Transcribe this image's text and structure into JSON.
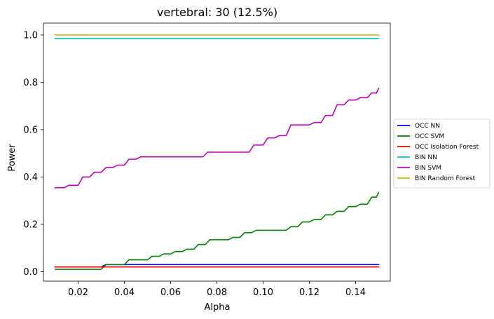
{
  "chart_data": {
    "type": "line",
    "title": "vertebral: 30 (12.5%)",
    "xlabel": "Alpha",
    "ylabel": "Power",
    "xlim": [
      0.005,
      0.155
    ],
    "ylim": [
      -0.04,
      1.05
    ],
    "xticks": [
      0.02,
      0.04,
      0.06,
      0.08,
      0.1,
      0.12,
      0.14
    ],
    "xtick_labels": [
      "0.02",
      "0.04",
      "0.06",
      "0.08",
      "0.10",
      "0.12",
      "0.14"
    ],
    "yticks": [
      0.0,
      0.2,
      0.4,
      0.6,
      0.8,
      1.0
    ],
    "ytick_labels": [
      "0.0",
      "0.2",
      "0.4",
      "0.6",
      "0.8",
      "1.0"
    ],
    "grid": false,
    "legend_position": "right, outside plot",
    "series": [
      {
        "name": "OCC NN",
        "color": "#0000ff",
        "x": [
          0.01,
          0.03,
          0.032,
          0.15
        ],
        "y": [
          0.02,
          0.02,
          0.03,
          0.03
        ]
      },
      {
        "name": "OCC SVM",
        "color": "#008000",
        "x": [
          0.01,
          0.03,
          0.032,
          0.04,
          0.042,
          0.05,
          0.052,
          0.055,
          0.057,
          0.06,
          0.062,
          0.065,
          0.067,
          0.07,
          0.072,
          0.075,
          0.077,
          0.085,
          0.087,
          0.09,
          0.092,
          0.095,
          0.097,
          0.11,
          0.112,
          0.115,
          0.117,
          0.12,
          0.122,
          0.125,
          0.127,
          0.13,
          0.132,
          0.135,
          0.137,
          0.14,
          0.142,
          0.145,
          0.147,
          0.149,
          0.15
        ],
        "y": [
          0.01,
          0.01,
          0.03,
          0.03,
          0.05,
          0.05,
          0.065,
          0.065,
          0.075,
          0.075,
          0.085,
          0.085,
          0.095,
          0.095,
          0.115,
          0.115,
          0.135,
          0.135,
          0.145,
          0.145,
          0.165,
          0.165,
          0.175,
          0.175,
          0.19,
          0.19,
          0.21,
          0.21,
          0.22,
          0.22,
          0.24,
          0.24,
          0.255,
          0.255,
          0.275,
          0.275,
          0.285,
          0.285,
          0.315,
          0.315,
          0.335
        ]
      },
      {
        "name": "OCC Isolation Forest",
        "color": "#ff0000",
        "x": [
          0.01,
          0.15
        ],
        "y": [
          0.02,
          0.02
        ]
      },
      {
        "name": "BIN NN",
        "color": "#00bfbf",
        "x": [
          0.01,
          0.15
        ],
        "y": [
          0.985,
          0.985
        ]
      },
      {
        "name": "BIN SVM",
        "color": "#bf00bf",
        "x": [
          0.01,
          0.014,
          0.016,
          0.02,
          0.022,
          0.025,
          0.027,
          0.03,
          0.032,
          0.035,
          0.037,
          0.04,
          0.042,
          0.045,
          0.047,
          0.074,
          0.076,
          0.094,
          0.096,
          0.1,
          0.102,
          0.105,
          0.107,
          0.11,
          0.112,
          0.12,
          0.122,
          0.125,
          0.127,
          0.13,
          0.132,
          0.135,
          0.137,
          0.14,
          0.142,
          0.145,
          0.147,
          0.149,
          0.15
        ],
        "y": [
          0.355,
          0.355,
          0.365,
          0.365,
          0.4,
          0.4,
          0.42,
          0.42,
          0.44,
          0.44,
          0.45,
          0.45,
          0.475,
          0.475,
          0.485,
          0.485,
          0.505,
          0.505,
          0.535,
          0.535,
          0.565,
          0.565,
          0.575,
          0.575,
          0.62,
          0.62,
          0.63,
          0.63,
          0.66,
          0.66,
          0.705,
          0.705,
          0.725,
          0.725,
          0.735,
          0.735,
          0.755,
          0.755,
          0.775
        ]
      },
      {
        "name": "BIN Random Forest",
        "color": "#bfbf00",
        "x": [
          0.01,
          0.15
        ],
        "y": [
          1.0,
          1.0
        ]
      }
    ]
  }
}
